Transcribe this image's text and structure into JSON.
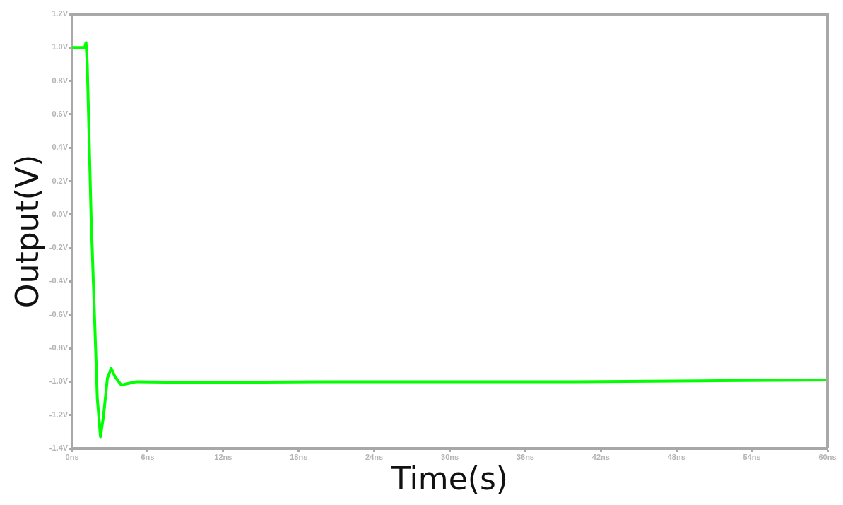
{
  "chart_data": {
    "type": "line",
    "xlabel": "Time(s)",
    "ylabel": "Output(V)",
    "x": [
      0,
      1.0,
      1.1,
      1.2,
      1.5,
      2.0,
      2.25,
      2.5,
      2.8,
      3.1,
      3.4,
      3.9,
      4.5,
      5.1,
      10,
      20,
      30,
      40,
      50,
      60
    ],
    "series": [
      {
        "color": "#00ff00",
        "values": [
          1.0,
          1.0,
          1.03,
          0.9,
          0.0,
          -1.1,
          -1.33,
          -1.2,
          -0.98,
          -0.92,
          -0.97,
          -1.02,
          -1.01,
          -1.0,
          -1.005,
          -1.0,
          -1.0,
          -1.0,
          -0.995,
          -0.99
        ]
      }
    ],
    "xlim": [
      0,
      60
    ],
    "ylim": [
      -1.4,
      1.2
    ],
    "xticks": [
      {
        "value": 0,
        "label": "0ns"
      },
      {
        "value": 6,
        "label": "6ns"
      },
      {
        "value": 12,
        "label": "12ns"
      },
      {
        "value": 18,
        "label": "18ns"
      },
      {
        "value": 24,
        "label": "24ns"
      },
      {
        "value": 30,
        "label": "30ns"
      },
      {
        "value": 36,
        "label": "36ns"
      },
      {
        "value": 42,
        "label": "42ns"
      },
      {
        "value": 48,
        "label": "48ns"
      },
      {
        "value": 54,
        "label": "54ns"
      },
      {
        "value": 60,
        "label": "60ns"
      }
    ],
    "yticks": [
      {
        "value": 1.2,
        "label": "1.2V"
      },
      {
        "value": 1.0,
        "label": "1.0V"
      },
      {
        "value": 0.8,
        "label": "0.8V"
      },
      {
        "value": 0.6,
        "label": "0.6V"
      },
      {
        "value": 0.4,
        "label": "0.4V"
      },
      {
        "value": 0.2,
        "label": "0.2V"
      },
      {
        "value": 0.0,
        "label": "0.0V"
      },
      {
        "value": -0.2,
        "label": "-0.2V"
      },
      {
        "value": -0.4,
        "label": "-0.4V"
      },
      {
        "value": -0.6,
        "label": "-0.6V"
      },
      {
        "value": -0.8,
        "label": "-0.8V"
      },
      {
        "value": -1.0,
        "label": "-1.0V"
      },
      {
        "value": -1.2,
        "label": "-1.2V"
      },
      {
        "value": -1.4,
        "label": "-1.4V"
      }
    ],
    "grid": false,
    "legend": false,
    "marker": "none",
    "line_style": "solid"
  }
}
